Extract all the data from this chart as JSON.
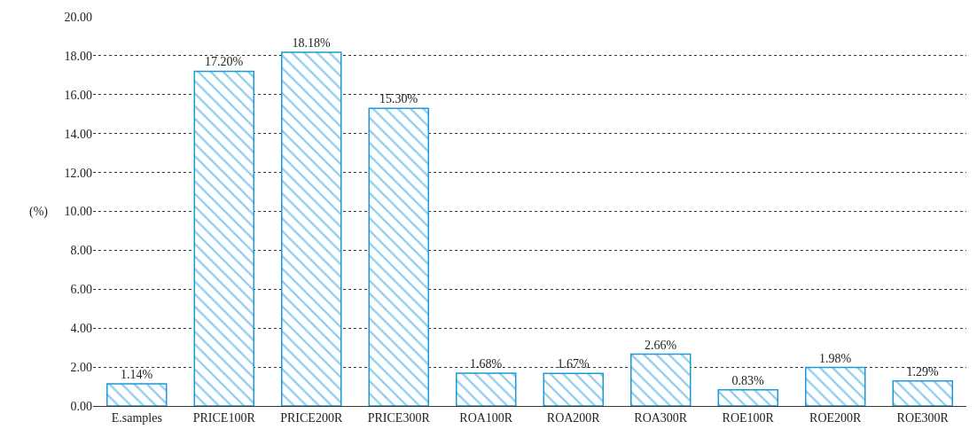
{
  "chart_data": {
    "type": "bar",
    "ylabel": "(%)",
    "categories": [
      "E.samples",
      "PRICE100R",
      "PRICE200R",
      "PRICE300R",
      "ROA100R",
      "ROA200R",
      "ROA300R",
      "ROE100R",
      "ROE200R",
      "ROE300R"
    ],
    "values": [
      1.14,
      17.2,
      18.18,
      15.3,
      1.68,
      1.67,
      2.66,
      0.83,
      1.98,
      1.29
    ],
    "value_labels": [
      "1.14%",
      "17.20%",
      "18.18%",
      "15.30%",
      "1.68%",
      "1.67%",
      "2.66%",
      "0.83%",
      "1.98%",
      "1.29%"
    ],
    "color": "#1a9bd7",
    "ylim": [
      0,
      20
    ],
    "yticks": [
      {
        "value": 0,
        "label": "0.00"
      },
      {
        "value": 2,
        "label": "2.00"
      },
      {
        "value": 4,
        "label": "4.00"
      },
      {
        "value": 6,
        "label": "6.00"
      },
      {
        "value": 8,
        "label": "8.00"
      },
      {
        "value": 10,
        "label": "10.00"
      },
      {
        "value": 12,
        "label": "12.00"
      },
      {
        "value": 14,
        "label": "14.00"
      },
      {
        "value": 16,
        "label": "16.00"
      },
      {
        "value": 18,
        "label": "18.00"
      },
      {
        "value": 20,
        "label": "20.00"
      }
    ],
    "grid": "y"
  }
}
